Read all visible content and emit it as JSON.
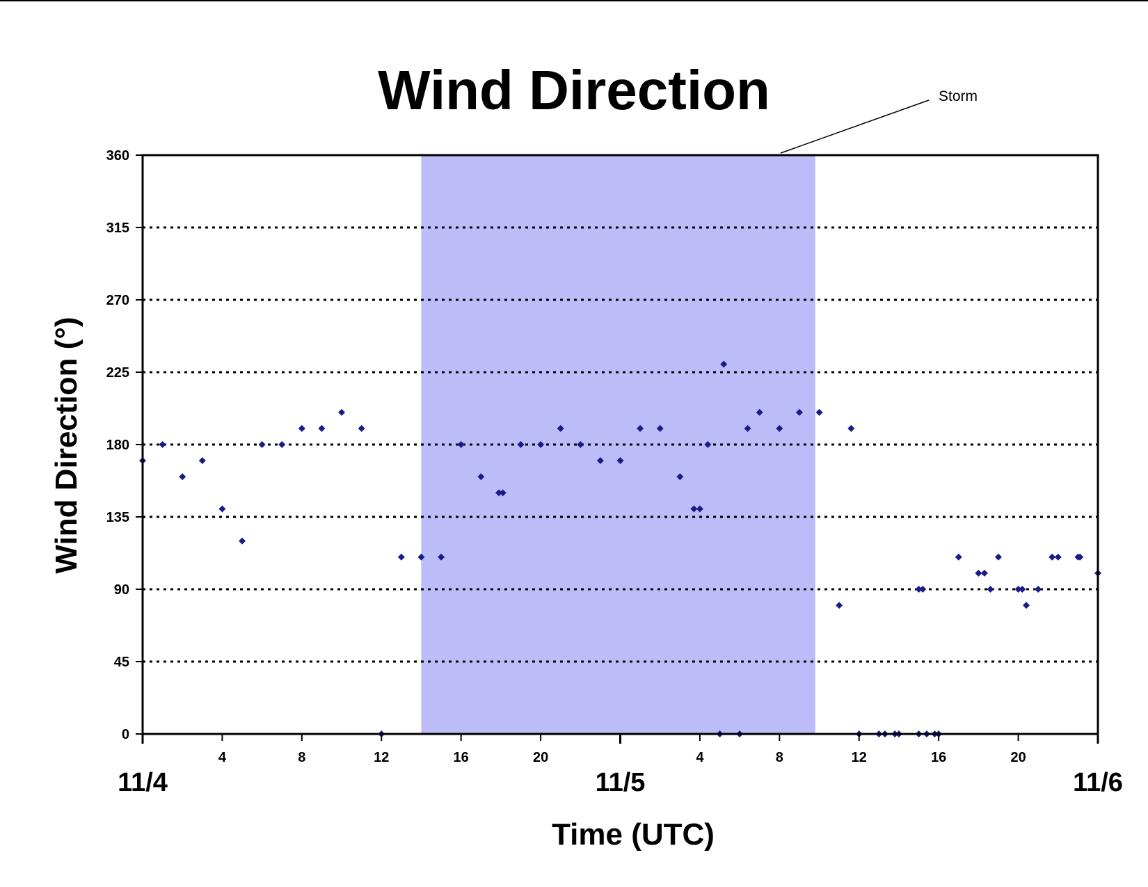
{
  "chart_data": {
    "type": "scatter",
    "title": "Wind Direction",
    "xlabel": "Time (UTC)",
    "ylabel": "Wind Direction (°)",
    "ylim": [
      0,
      360
    ],
    "yticks": [
      0,
      45,
      90,
      135,
      180,
      225,
      270,
      315,
      360
    ],
    "xlim_hours": [
      0,
      48
    ],
    "xticks": [
      {
        "h": 4,
        "label": "4"
      },
      {
        "h": 8,
        "label": "8"
      },
      {
        "h": 12,
        "label": "12"
      },
      {
        "h": 16,
        "label": "16"
      },
      {
        "h": 20,
        "label": "20"
      },
      {
        "h": 28,
        "label": "4"
      },
      {
        "h": 32,
        "label": "8"
      },
      {
        "h": 36,
        "label": "12"
      },
      {
        "h": 40,
        "label": "16"
      },
      {
        "h": 44,
        "label": "20"
      }
    ],
    "date_labels": [
      {
        "h": 0,
        "label": "11/4"
      },
      {
        "h": 24,
        "label": "11/5"
      },
      {
        "h": 48,
        "label": "11/6"
      }
    ],
    "grid": "horizontal dotted",
    "marker_color": "#1a1a8c",
    "shaded_region": {
      "x_start": 14,
      "x_end": 33.8,
      "color": "#bcbcf8",
      "label": "Storm"
    },
    "points": [
      {
        "x": 0,
        "y": 170
      },
      {
        "x": 1,
        "y": 180
      },
      {
        "x": 2,
        "y": 160
      },
      {
        "x": 3,
        "y": 170
      },
      {
        "x": 4,
        "y": 140
      },
      {
        "x": 5,
        "y": 120
      },
      {
        "x": 6,
        "y": 180
      },
      {
        "x": 7,
        "y": 180
      },
      {
        "x": 8,
        "y": 190
      },
      {
        "x": 9,
        "y": 190
      },
      {
        "x": 10,
        "y": 200
      },
      {
        "x": 11,
        "y": 190
      },
      {
        "x": 12,
        "y": 0
      },
      {
        "x": 13,
        "y": 110
      },
      {
        "x": 14,
        "y": 110
      },
      {
        "x": 15,
        "y": 110
      },
      {
        "x": 16,
        "y": 180
      },
      {
        "x": 17,
        "y": 160
      },
      {
        "x": 17.9,
        "y": 150
      },
      {
        "x": 18.1,
        "y": 150
      },
      {
        "x": 19,
        "y": 180
      },
      {
        "x": 20,
        "y": 180
      },
      {
        "x": 21,
        "y": 190
      },
      {
        "x": 22,
        "y": 180
      },
      {
        "x": 23,
        "y": 170
      },
      {
        "x": 24,
        "y": 170
      },
      {
        "x": 25,
        "y": 190
      },
      {
        "x": 26,
        "y": 190
      },
      {
        "x": 27,
        "y": 160
      },
      {
        "x": 27.7,
        "y": 140
      },
      {
        "x": 28,
        "y": 140
      },
      {
        "x": 28.4,
        "y": 180
      },
      {
        "x": 29,
        "y": 0
      },
      {
        "x": 29.2,
        "y": 230
      },
      {
        "x": 30,
        "y": 0
      },
      {
        "x": 30.4,
        "y": 190
      },
      {
        "x": 31,
        "y": 200
      },
      {
        "x": 32,
        "y": 190
      },
      {
        "x": 33,
        "y": 200
      },
      {
        "x": 34,
        "y": 200
      },
      {
        "x": 35,
        "y": 80
      },
      {
        "x": 35.6,
        "y": 190
      },
      {
        "x": 36,
        "y": 0
      },
      {
        "x": 37,
        "y": 0
      },
      {
        "x": 37.3,
        "y": 0
      },
      {
        "x": 37.8,
        "y": 0
      },
      {
        "x": 38,
        "y": 0
      },
      {
        "x": 39,
        "y": 0
      },
      {
        "x": 39,
        "y": 90
      },
      {
        "x": 39.2,
        "y": 90
      },
      {
        "x": 39.4,
        "y": 0
      },
      {
        "x": 39.8,
        "y": 0
      },
      {
        "x": 40,
        "y": 0
      },
      {
        "x": 41,
        "y": 110
      },
      {
        "x": 42,
        "y": 100
      },
      {
        "x": 42.3,
        "y": 100
      },
      {
        "x": 42.6,
        "y": 90
      },
      {
        "x": 43,
        "y": 110
      },
      {
        "x": 44,
        "y": 90
      },
      {
        "x": 44.2,
        "y": 90
      },
      {
        "x": 44.4,
        "y": 80
      },
      {
        "x": 45,
        "y": 90
      },
      {
        "x": 45.7,
        "y": 110
      },
      {
        "x": 46,
        "y": 110
      },
      {
        "x": 47,
        "y": 110
      },
      {
        "x": 47.1,
        "y": 110
      },
      {
        "x": 48,
        "y": 100
      }
    ]
  }
}
